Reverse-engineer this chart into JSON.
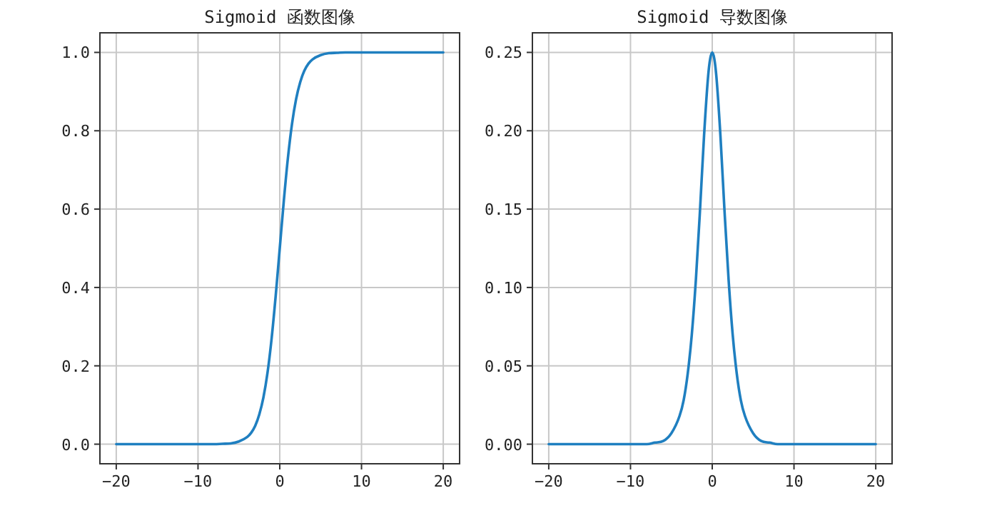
{
  "chart_data": [
    {
      "type": "line",
      "title": "Sigmoid 函数图像",
      "x": [
        -20,
        -15,
        -10,
        -8,
        -7,
        -6,
        -5,
        -4,
        -3.5,
        -3,
        -2.5,
        -2,
        -1.5,
        -1,
        -0.5,
        0,
        0.5,
        1,
        1.5,
        2,
        2.5,
        3,
        3.5,
        4,
        5,
        6,
        7,
        8,
        10,
        15,
        20
      ],
      "series": [
        {
          "color": "#1f7fc0",
          "values": [
            0,
            0,
            0,
            0,
            0.001,
            0.002,
            0.007,
            0.018,
            0.029,
            0.047,
            0.076,
            0.119,
            0.182,
            0.269,
            0.378,
            0.5,
            0.622,
            0.731,
            0.818,
            0.881,
            0.924,
            0.953,
            0.971,
            0.982,
            0.993,
            0.998,
            0.999,
            1,
            1,
            1,
            1
          ]
        }
      ],
      "xlim": [
        -22,
        22
      ],
      "ylim": [
        -0.05,
        1.05
      ],
      "xticks": [
        -20,
        -10,
        0,
        10,
        20
      ],
      "yticks": [
        {
          "value": 0,
          "label": "0.0"
        },
        0.2,
        0.4,
        0.6,
        0.8,
        {
          "value": 1,
          "label": "1.0"
        }
      ],
      "grid": true
    },
    {
      "type": "line",
      "title": "Sigmoid 导数图像",
      "x": [
        -20,
        -15,
        -10,
        -8,
        -7,
        -6,
        -5,
        -4,
        -3.5,
        -3,
        -2.5,
        -2,
        -1.5,
        -1,
        -0.5,
        -0.25,
        0,
        0.25,
        0.5,
        1,
        1.5,
        2,
        2.5,
        3,
        3.5,
        4,
        5,
        6,
        7,
        8,
        10,
        15,
        20
      ],
      "series": [
        {
          "color": "#1f7fc0",
          "values": [
            0,
            0,
            0,
            0,
            0.001,
            0.002,
            0.007,
            0.018,
            0.028,
            0.045,
            0.07,
            0.105,
            0.149,
            0.197,
            0.235,
            0.246,
            0.25,
            0.246,
            0.235,
            0.197,
            0.149,
            0.105,
            0.07,
            0.045,
            0.028,
            0.018,
            0.007,
            0.002,
            0.001,
            0,
            0,
            0,
            0
          ]
        }
      ],
      "xlim": [
        -22,
        22
      ],
      "ylim": [
        -0.0125,
        0.2625
      ],
      "xticks": [
        -20,
        -10,
        0,
        10,
        20
      ],
      "yticks": [
        {
          "value": 0,
          "label": "0.00"
        },
        {
          "value": 0.05,
          "label": "0.05"
        },
        {
          "value": 0.1,
          "label": "0.10"
        },
        {
          "value": 0.15,
          "label": "0.15"
        },
        {
          "value": 0.2,
          "label": "0.20"
        },
        0.25
      ],
      "grid": true
    }
  ]
}
